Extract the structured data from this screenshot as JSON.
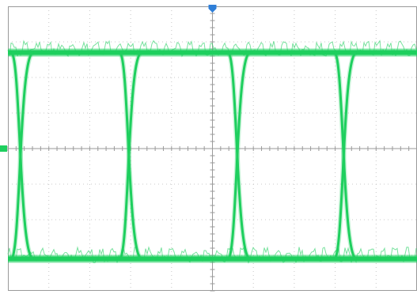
{
  "screen": {
    "grid_divisions": {
      "horizontal": 10,
      "vertical": 8
    },
    "grid_visible": true,
    "colors": {
      "background": "#ffffff",
      "grid": "#c8c8c8",
      "center_axis": "#9a9a9a",
      "trace": "#1ecf5e",
      "trigger_marker": "#2f7fd8",
      "channel_marker": "#1ecf5e"
    }
  },
  "trace": {
    "display": "eye-diagram",
    "high_level_div": 2.7,
    "low_level_div": -3.1,
    "crossing_level_div": 0,
    "crossing_times_div": [
      -4.65,
      -2.0,
      0.65,
      3.25
    ]
  },
  "markers": {
    "trigger_icon": "trigger-position-marker",
    "channel_icon": "channel-ground-marker"
  }
}
